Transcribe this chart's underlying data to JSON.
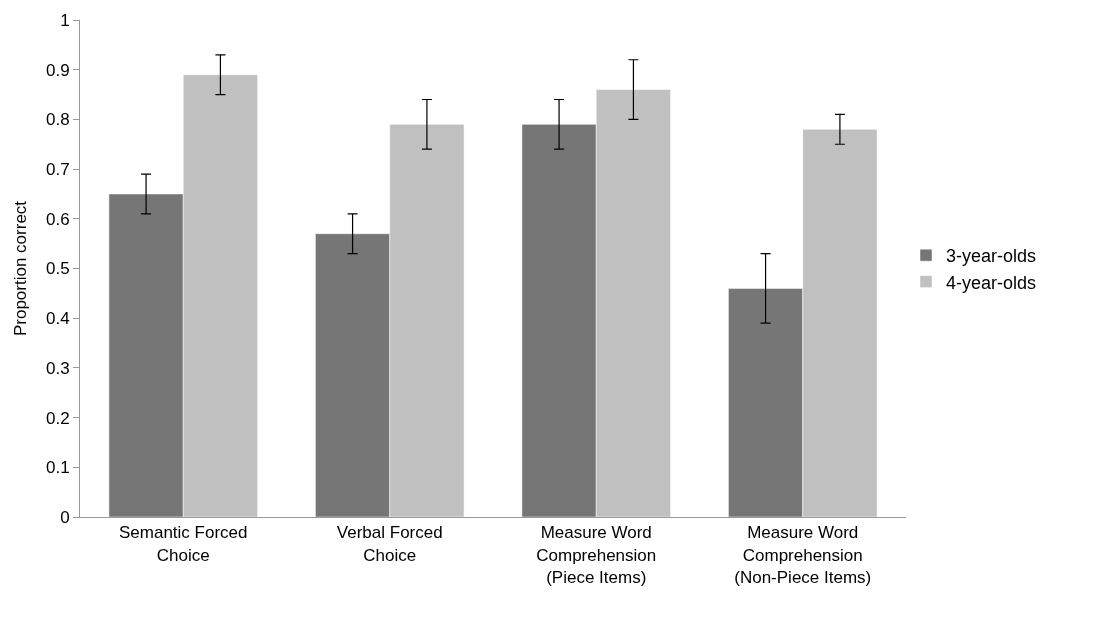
{
  "chart_data": {
    "type": "bar",
    "ylabel": "Proportion correct",
    "categories": [
      "Semantic Forced\nChoice",
      "Verbal Forced\nChoice",
      "Measure Word\nComprehension\n(Piece Items)",
      "Measure Word\nComprehension\n(Non-Piece Items)"
    ],
    "series": [
      {
        "name": "3-year-olds",
        "color": "#767676",
        "values": [
          0.65,
          0.57,
          0.79,
          0.46
        ],
        "errors": [
          0.04,
          0.04,
          0.05,
          0.07
        ]
      },
      {
        "name": "4-year-olds",
        "color": "#c0c0c0",
        "values": [
          0.89,
          0.79,
          0.86,
          0.78
        ],
        "errors": [
          0.04,
          0.05,
          0.06,
          0.03
        ]
      }
    ],
    "ylim": [
      0,
      1
    ],
    "yticks": [
      0,
      0.1,
      0.2,
      0.3,
      0.4,
      0.5,
      0.6,
      0.7,
      0.8,
      0.9,
      1
    ],
    "grid": false,
    "legend": "right"
  }
}
